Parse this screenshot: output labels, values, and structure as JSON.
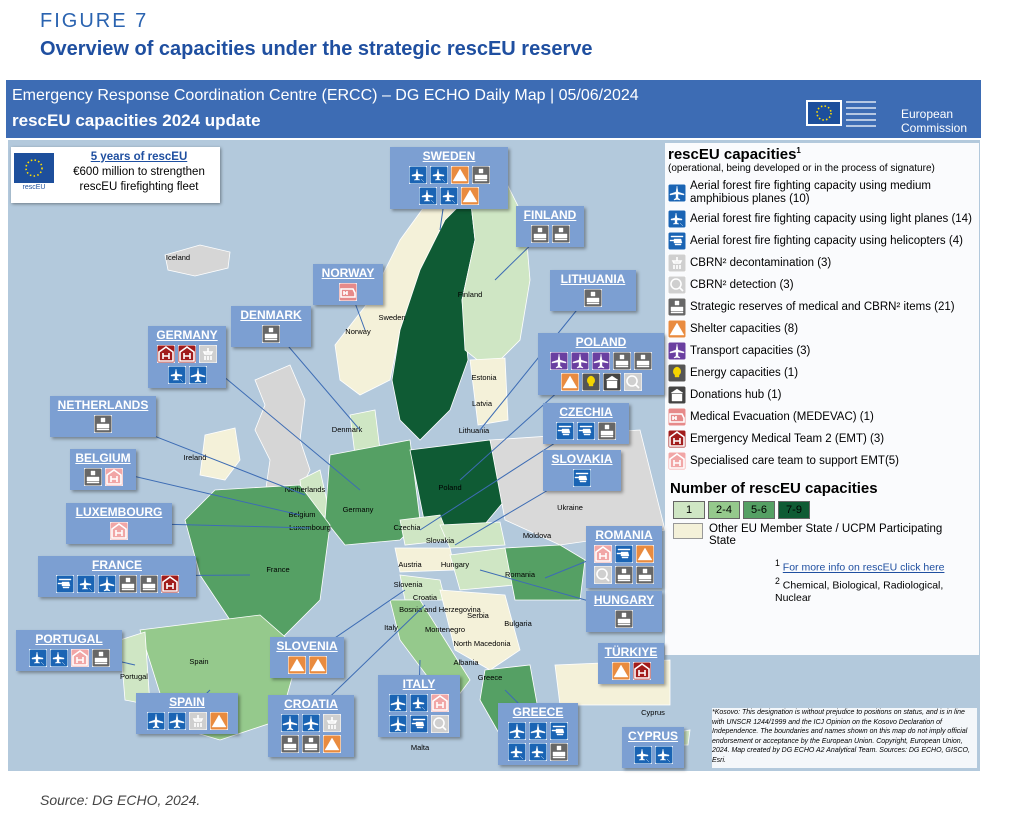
{
  "figure_label": "FIGURE 7",
  "title": "Overview of capacities under the strategic rescEU reserve",
  "header": {
    "line1": "Emergency Response Coordination Centre (ERCC) – DG ECHO Daily Map | 05/06/2024",
    "line2": "rescEU capacities 2024 update",
    "logo": [
      "European",
      "Commission"
    ]
  },
  "info_box": {
    "logo_label": "rescEU",
    "link": "5 years of rescEU",
    "lines": [
      "€600 million to strengthen",
      "rescEU firefighting fleet"
    ]
  },
  "countries": [
    "SWEDEN",
    "FINLAND",
    "NORWAY",
    "LITHUANIA",
    "DENMARK",
    "POLAND",
    "GERMANY",
    "NETHERLANDS",
    "CZECHIA",
    "SLOVAKIA",
    "BELGIUM",
    "LUXEMBOURG",
    "FRANCE",
    "ROMANIA",
    "HUNGARY",
    "PORTUGAL",
    "SLOVENIA",
    "TÜRKIYE",
    "SPAIN",
    "CROATIA",
    "ITALY",
    "GREECE",
    "CYPRUS"
  ],
  "map_labels": [
    "Iceland",
    "Norway",
    "Sweden",
    "Finland",
    "Estonia",
    "Latvia",
    "Lithuania",
    "Denmark",
    "Ireland",
    "Netherlands",
    "Belgium",
    "Luxembourg",
    "Germany",
    "Poland",
    "Czechia",
    "Slovakia",
    "Ukraine",
    "Moldova",
    "Austria",
    "Hungary",
    "Romania",
    "France",
    "Slovenia",
    "Croatia",
    "Bosnia and Herzegovina",
    "Serbia",
    "Montenegro",
    "North Macedonia",
    "Albania",
    "Bulgaria",
    "Italy",
    "Spain",
    "Portugal",
    "Greece",
    "Cyprus",
    "Malta"
  ],
  "legend": {
    "title": "rescEU capacities",
    "title_sup": "1",
    "subtitle": "(operational, being developed or in the process of signature)",
    "items": [
      "Aerial forest fire fighting capacity using medium amphibious planes (10)",
      "Aerial forest fire fighting capacity using light planes (14)",
      "Aerial forest fire fighting capacity using helicopters (4)",
      "CBRN² decontamination (3)",
      "CBRN² detection (3)",
      "Strategic reserves of medical and CBRN² items (21)",
      "Shelter capacities (8)",
      "Transport capacities (3)",
      "Energy capacities (1)",
      "Donations hub (1)",
      "Medical Evacuation (MEDEVAC) (1)",
      "Emergency Medical Team 2 (EMT) (3)",
      "Specialised care team to support EMT(5)"
    ]
  },
  "count_legend": {
    "title": "Number of rescEU capacities",
    "classes": [
      "1",
      "2-4",
      "5-6",
      "7-9"
    ],
    "colors": [
      "#cfe6c4",
      "#95c98c",
      "#55a064",
      "#0f5b34"
    ],
    "other": "Other EU Member State / UCPM Participating State",
    "other_color": "#f4f1d9"
  },
  "footnotes": [
    {
      "sup": "1",
      "text": "For more info on rescEU click here"
    },
    {
      "sup": "2",
      "text": "Chemical, Biological, Radiological, Nuclear"
    }
  ],
  "disclaimer": "*Kosovo: This designation is without prejudice to positions on status, and is in line with UNSCR 1244/1999 and the ICJ Opinion on the Kosovo Declaration of Independence. The boundaries and names shown on this map do not imply official endorsement or acceptance by the European Union. Copyright, European Union, 2024. Map created by DG ECHO A2 Analytical Team. Sources: DG ECHO, GISCO, Esri.",
  "source": "Source: DG ECHO, 2024."
}
